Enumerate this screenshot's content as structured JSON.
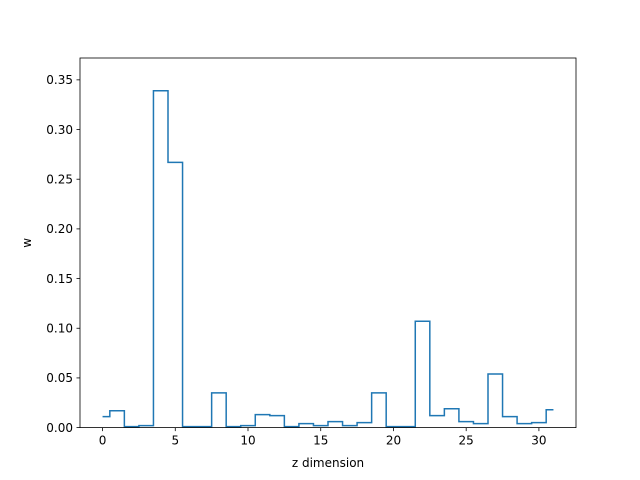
{
  "chart_data": {
    "type": "line",
    "style": "step",
    "xlabel": "z dimension",
    "ylabel": "w",
    "xlim": [
      -1.55,
      32.55
    ],
    "ylim": [
      0,
      0.372
    ],
    "grid": false,
    "line_color": "#1f77b4",
    "xticks": [
      0,
      5,
      10,
      15,
      20,
      25,
      30
    ],
    "xtick_labels": [
      "0",
      "5",
      "10",
      "15",
      "20",
      "25",
      "30"
    ],
    "yticks": [
      0,
      0.05,
      0.1,
      0.15,
      0.2,
      0.25,
      0.3,
      0.35
    ],
    "ytick_labels": [
      "0.00",
      "0.05",
      "0.10",
      "0.15",
      "0.20",
      "0.25",
      "0.30",
      "0.35"
    ],
    "x": [
      0,
      1,
      2,
      3,
      4,
      5,
      6,
      7,
      8,
      9,
      10,
      11,
      12,
      13,
      14,
      15,
      16,
      17,
      18,
      19,
      20,
      21,
      22,
      23,
      24,
      25,
      26,
      27,
      28,
      29,
      30,
      31
    ],
    "values": [
      0.011,
      0.017,
      0.001,
      0.002,
      0.339,
      0.267,
      0.001,
      0.001,
      0.035,
      0.001,
      0.002,
      0.013,
      0.012,
      0.001,
      0.004,
      0.002,
      0.006,
      0.002,
      0.005,
      0.035,
      0.001,
      0.001,
      0.107,
      0.012,
      0.019,
      0.006,
      0.004,
      0.054,
      0.011,
      0.004,
      0.005,
      0.018
    ]
  }
}
